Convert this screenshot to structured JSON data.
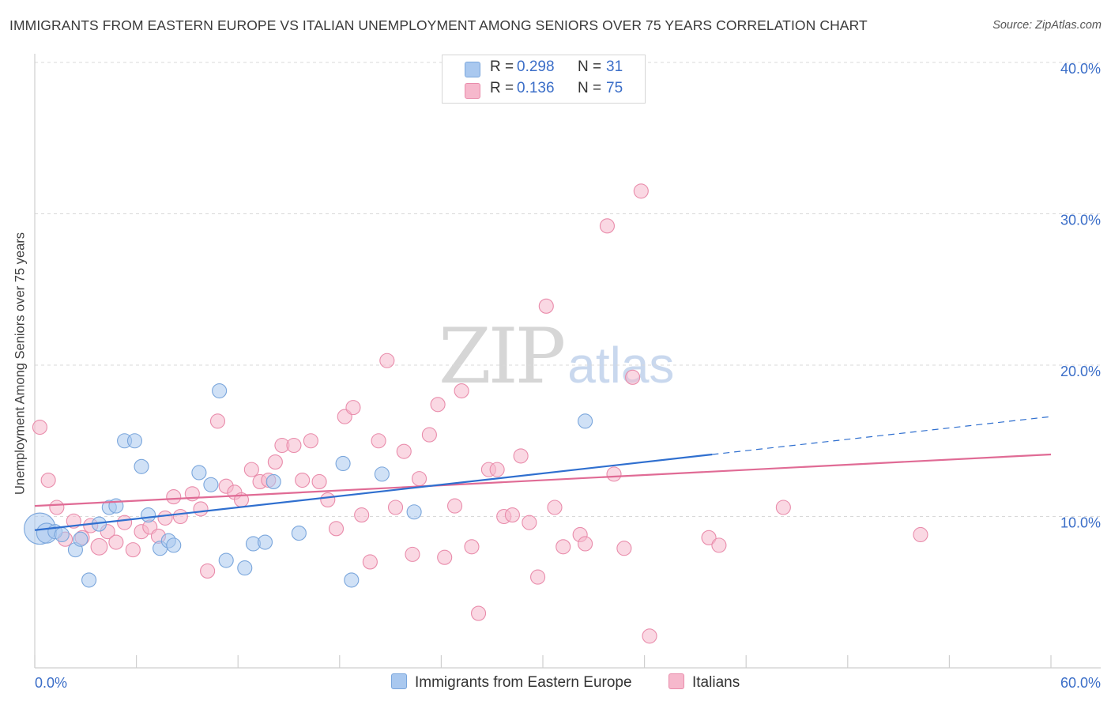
{
  "title": "IMMIGRANTS FROM EASTERN EUROPE VS ITALIAN UNEMPLOYMENT AMONG SENIORS OVER 75 YEARS CORRELATION CHART",
  "source": "Source: ZipAtlas.com",
  "watermark": {
    "zip": "ZIP",
    "atlas": "atlas"
  },
  "colors": {
    "blue_fill": "#a9c8ef",
    "blue_stroke": "#7aa6dc",
    "blue_line": "#2f6fcf",
    "pink_fill": "#f6b8cc",
    "pink_stroke": "#e98cab",
    "pink_line": "#e06b95",
    "tick_label": "#3b6ec8",
    "grid": "#d9d9d9"
  },
  "legend": {
    "rows": [
      {
        "r_label": "R =",
        "r_value": "0.298",
        "n_label": "N =",
        "n_value": "31",
        "color": "#a9c8ef",
        "border": "#7aa6dc"
      },
      {
        "r_label": "R =",
        "r_value": "0.136",
        "n_label": "N =",
        "n_value": "75",
        "color": "#f6b8cc",
        "border": "#e98cab"
      }
    ]
  },
  "bottom_legend": [
    {
      "label": "Immigrants from Eastern Europe",
      "color": "#a9c8ef",
      "border": "#7aa6dc"
    },
    {
      "label": "Italians",
      "color": "#f6b8cc",
      "border": "#e98cab"
    }
  ],
  "chart_data": {
    "type": "scatter",
    "title": "IMMIGRANTS FROM EASTERN EUROPE VS ITALIAN UNEMPLOYMENT AMONG SENIORS OVER 75 YEARS CORRELATION CHART",
    "xlabel": "",
    "ylabel": "Unemployment Among Seniors over 75 years",
    "xlim": [
      0,
      60
    ],
    "ylim": [
      0,
      40
    ],
    "x_tick_labels": [
      {
        "value": 0,
        "label": "0.0%"
      },
      {
        "value": 60,
        "label": "60.0%"
      }
    ],
    "y_tick_labels": [
      {
        "value": 10,
        "label": "10.0%"
      },
      {
        "value": 20,
        "label": "20.0%"
      },
      {
        "value": 30,
        "label": "30.0%"
      },
      {
        "value": 40,
        "label": "40.0%"
      }
    ],
    "x_minor_ticks": [
      0,
      6,
      12,
      18,
      24,
      30,
      36,
      42,
      48,
      54,
      60
    ],
    "grid": true,
    "series": [
      {
        "name": "Immigrants from Eastern Europe",
        "points": [
          [
            0.3,
            9.2,
            2.2
          ],
          [
            0.7,
            8.9,
            1.4
          ],
          [
            1.2,
            9.0,
            1.0
          ],
          [
            1.6,
            8.8,
            1.0
          ],
          [
            2.4,
            7.8,
            1.0
          ],
          [
            2.7,
            8.5,
            1.0
          ],
          [
            3.2,
            5.8,
            1.0
          ],
          [
            3.8,
            9.5,
            1.0
          ],
          [
            4.4,
            10.6,
            1.0
          ],
          [
            4.8,
            10.7,
            1.0
          ],
          [
            5.3,
            15.0,
            1.0
          ],
          [
            5.9,
            15.0,
            1.0
          ],
          [
            6.3,
            13.3,
            1.0
          ],
          [
            6.7,
            10.1,
            1.0
          ],
          [
            7.4,
            7.9,
            1.0
          ],
          [
            7.9,
            8.4,
            1.0
          ],
          [
            8.2,
            8.1,
            1.0
          ],
          [
            9.7,
            12.9,
            1.0
          ],
          [
            10.4,
            12.1,
            1.0
          ],
          [
            10.9,
            18.3,
            1.0
          ],
          [
            11.3,
            7.1,
            1.0
          ],
          [
            12.4,
            6.6,
            1.0
          ],
          [
            12.9,
            8.2,
            1.0
          ],
          [
            13.6,
            8.3,
            1.0
          ],
          [
            14.1,
            12.3,
            1.0
          ],
          [
            15.6,
            8.9,
            1.0
          ],
          [
            18.2,
            13.5,
            1.0
          ],
          [
            18.7,
            5.8,
            1.0
          ],
          [
            20.5,
            12.8,
            1.0
          ],
          [
            22.4,
            10.3,
            1.0
          ],
          [
            32.5,
            16.3,
            1.0
          ]
        ],
        "trend": {
          "x": [
            0,
            40
          ],
          "y": [
            9.1,
            14.1
          ]
        },
        "trend_extension": {
          "x": [
            40,
            60
          ],
          "y": [
            14.1,
            16.6
          ]
        }
      },
      {
        "name": "Italians",
        "points": [
          [
            0.3,
            15.9,
            1
          ],
          [
            0.8,
            12.4,
            1
          ],
          [
            1.3,
            10.6,
            1
          ],
          [
            1.8,
            8.5,
            1
          ],
          [
            2.3,
            9.7,
            1
          ],
          [
            2.8,
            8.6,
            1
          ],
          [
            3.3,
            9.4,
            1
          ],
          [
            3.8,
            8.0,
            1.15
          ],
          [
            4.3,
            9.0,
            1
          ],
          [
            4.8,
            8.3,
            1
          ],
          [
            5.3,
            9.6,
            1
          ],
          [
            5.8,
            7.8,
            1
          ],
          [
            6.3,
            9.0,
            1
          ],
          [
            6.8,
            9.3,
            1
          ],
          [
            7.3,
            8.7,
            1
          ],
          [
            7.7,
            9.9,
            1
          ],
          [
            8.2,
            11.3,
            1
          ],
          [
            8.6,
            10.0,
            1
          ],
          [
            9.3,
            11.5,
            1
          ],
          [
            9.8,
            10.5,
            1
          ],
          [
            10.2,
            6.4,
            1
          ],
          [
            10.8,
            16.3,
            1
          ],
          [
            11.3,
            12.0,
            1
          ],
          [
            11.8,
            11.6,
            1
          ],
          [
            12.2,
            11.1,
            1
          ],
          [
            12.8,
            13.1,
            1
          ],
          [
            13.3,
            12.3,
            1
          ],
          [
            13.8,
            12.4,
            1
          ],
          [
            14.2,
            13.6,
            1
          ],
          [
            14.6,
            14.7,
            1
          ],
          [
            15.3,
            14.7,
            1
          ],
          [
            15.8,
            12.4,
            1
          ],
          [
            16.3,
            15.0,
            1
          ],
          [
            16.8,
            12.3,
            1
          ],
          [
            17.3,
            11.1,
            1
          ],
          [
            17.8,
            9.2,
            1
          ],
          [
            18.3,
            16.6,
            1
          ],
          [
            18.8,
            17.2,
            1
          ],
          [
            19.3,
            10.1,
            1
          ],
          [
            19.8,
            7.0,
            1
          ],
          [
            20.3,
            15.0,
            1
          ],
          [
            20.8,
            20.3,
            1
          ],
          [
            21.3,
            10.6,
            1
          ],
          [
            21.8,
            14.3,
            1
          ],
          [
            22.3,
            7.5,
            1
          ],
          [
            22.7,
            12.5,
            1
          ],
          [
            23.3,
            15.4,
            1
          ],
          [
            23.8,
            17.4,
            1
          ],
          [
            24.2,
            7.3,
            1
          ],
          [
            24.8,
            10.7,
            1
          ],
          [
            25.2,
            18.3,
            1
          ],
          [
            25.8,
            8.0,
            1
          ],
          [
            26.2,
            3.6,
            1
          ],
          [
            26.8,
            13.1,
            1
          ],
          [
            27.3,
            13.1,
            1
          ],
          [
            27.7,
            10.0,
            1
          ],
          [
            28.2,
            10.1,
            1
          ],
          [
            28.7,
            14.0,
            1
          ],
          [
            29.2,
            9.6,
            1
          ],
          [
            29.7,
            6.0,
            1
          ],
          [
            30.2,
            23.9,
            1
          ],
          [
            30.7,
            10.6,
            1
          ],
          [
            31.2,
            8.0,
            1
          ],
          [
            32.2,
            8.8,
            1
          ],
          [
            32.5,
            8.2,
            1
          ],
          [
            33.8,
            29.2,
            1
          ],
          [
            34.2,
            12.8,
            1
          ],
          [
            34.8,
            7.9,
            1
          ],
          [
            35.3,
            19.2,
            1
          ],
          [
            35.8,
            31.5,
            1
          ],
          [
            36.3,
            2.1,
            1
          ],
          [
            39.8,
            8.6,
            1
          ],
          [
            40.4,
            8.1,
            1
          ],
          [
            44.2,
            10.6,
            1
          ],
          [
            52.3,
            8.8,
            1
          ]
        ],
        "trend": {
          "x": [
            0,
            60
          ],
          "y": [
            10.7,
            14.1
          ]
        }
      }
    ]
  }
}
